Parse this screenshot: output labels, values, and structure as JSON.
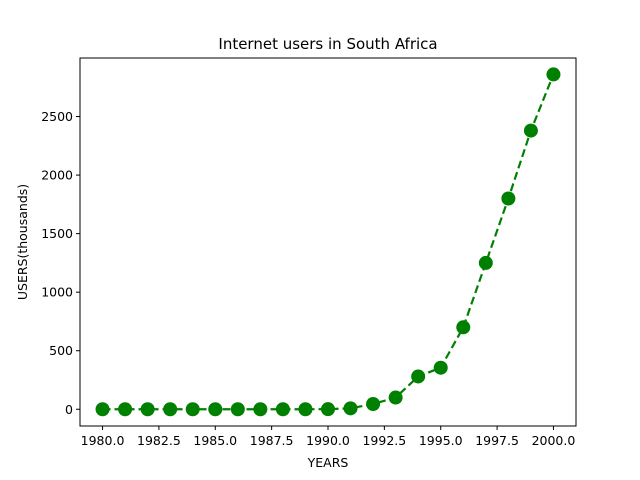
{
  "chart_data": {
    "type": "line",
    "title": "Internet users in South Africa",
    "xlabel": "YEARS",
    "ylabel": "USERS(thousands)",
    "xlim": [
      1979,
      2001
    ],
    "ylim": [
      -143,
      3000
    ],
    "x_ticks": [
      1980.0,
      1982.5,
      1985.0,
      1987.5,
      1990.0,
      1992.5,
      1995.0,
      1997.5,
      2000.0
    ],
    "x_tick_labels": [
      "1980.0",
      "1982.5",
      "1985.0",
      "1987.5",
      "1990.0",
      "1992.5",
      "1995.0",
      "1997.5",
      "2000.0"
    ],
    "y_ticks": [
      0,
      500,
      1000,
      1500,
      2000,
      2500
    ],
    "y_tick_labels": [
      "0",
      "500",
      "1000",
      "1500",
      "2000",
      "2500"
    ],
    "grid": false,
    "series": [
      {
        "color": "#008000",
        "line_style": "dashed",
        "marker": "circle",
        "x": [
          1980,
          1981,
          1982,
          1983,
          1984,
          1985,
          1986,
          1987,
          1988,
          1989,
          1990,
          1991,
          1992,
          1993,
          1994,
          1995,
          1996,
          1997,
          1998,
          1999,
          2000
        ],
        "y": [
          0,
          0,
          0,
          0,
          0,
          0,
          0,
          0,
          0,
          0,
          1,
          8,
          45,
          100,
          280,
          355,
          700,
          1250,
          1800,
          2380,
          2860
        ]
      }
    ]
  }
}
